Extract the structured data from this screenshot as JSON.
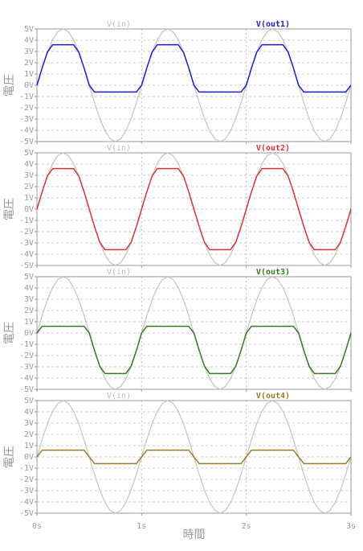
{
  "chart_data": [
    {
      "type": "line",
      "ylabel": "電圧",
      "x": [
        0,
        0.05,
        0.1,
        0.15,
        0.2,
        0.25,
        0.3,
        0.35,
        0.4,
        0.45,
        0.5,
        0.55,
        0.6,
        0.65,
        0.7,
        0.75,
        0.8,
        0.85,
        0.9,
        0.95,
        1,
        1.05,
        1.1,
        1.15,
        1.2,
        1.25,
        1.3,
        1.35,
        1.4,
        1.45,
        1.5,
        1.55,
        1.6,
        1.65,
        1.7,
        1.75,
        1.8,
        1.85,
        1.9,
        1.95,
        2,
        2.05,
        2.1,
        2.15,
        2.2,
        2.25,
        2.3,
        2.35,
        2.4,
        2.45,
        2.5,
        2.55,
        2.6,
        2.65,
        2.7,
        2.75,
        2.8,
        2.85,
        2.9,
        2.95,
        3
      ],
      "ylim": [
        -5,
        5
      ],
      "yticks": [
        {
          "value": 5,
          "label": "5V"
        },
        {
          "value": 4,
          "label": "4V"
        },
        {
          "value": 3,
          "label": "3V"
        },
        {
          "value": 2,
          "label": "2V"
        },
        {
          "value": 1,
          "label": "1V"
        },
        {
          "value": 0,
          "label": "0V"
        },
        {
          "value": -1,
          "label": "-1V"
        },
        {
          "value": -2,
          "label": "-2V"
        },
        {
          "value": -3,
          "label": "-3V"
        },
        {
          "value": -4,
          "label": "-4V"
        },
        {
          "value": -5,
          "label": "-5V"
        }
      ],
      "grid": true,
      "series": [
        {
          "name": "V(in)",
          "color": "#c4c4c4",
          "values": [
            0,
            1.55,
            2.94,
            4.05,
            4.76,
            5,
            4.76,
            4.05,
            2.94,
            1.55,
            0,
            -1.55,
            -2.94,
            -4.05,
            -4.76,
            -5,
            -4.76,
            -4.05,
            -2.94,
            -1.55,
            0,
            1.55,
            2.94,
            4.05,
            4.76,
            5,
            4.76,
            4.05,
            2.94,
            1.55,
            0,
            -1.55,
            -2.94,
            -4.05,
            -4.76,
            -5,
            -4.76,
            -4.05,
            -2.94,
            -1.55,
            0,
            1.55,
            2.94,
            4.05,
            4.76,
            5,
            4.76,
            4.05,
            2.94,
            1.55,
            0,
            -1.55,
            -2.94,
            -4.05,
            -4.76,
            -5,
            -4.76,
            -4.05,
            -2.94,
            -1.55,
            0
          ]
        },
        {
          "name": "V(out1)",
          "color": "#1a1adb",
          "values": [
            0,
            1.55,
            2.94,
            3.6,
            3.6,
            3.6,
            3.6,
            3.6,
            2.94,
            1.55,
            0,
            -0.6,
            -0.6,
            -0.6,
            -0.6,
            -0.6,
            -0.6,
            -0.6,
            -0.6,
            -0.6,
            0,
            1.55,
            2.94,
            3.6,
            3.6,
            3.6,
            3.6,
            3.6,
            2.94,
            1.55,
            0,
            -0.6,
            -0.6,
            -0.6,
            -0.6,
            -0.6,
            -0.6,
            -0.6,
            -0.6,
            -0.6,
            0,
            1.55,
            2.94,
            3.6,
            3.6,
            3.6,
            3.6,
            3.6,
            2.94,
            1.55,
            0,
            -0.6,
            -0.6,
            -0.6,
            -0.6,
            -0.6,
            -0.6,
            -0.6,
            -0.6,
            -0.6,
            0
          ]
        }
      ]
    },
    {
      "type": "line",
      "ylabel": "電圧",
      "x": [
        0,
        0.05,
        0.1,
        0.15,
        0.2,
        0.25,
        0.3,
        0.35,
        0.4,
        0.45,
        0.5,
        0.55,
        0.6,
        0.65,
        0.7,
        0.75,
        0.8,
        0.85,
        0.9,
        0.95,
        1,
        1.05,
        1.1,
        1.15,
        1.2,
        1.25,
        1.3,
        1.35,
        1.4,
        1.45,
        1.5,
        1.55,
        1.6,
        1.65,
        1.7,
        1.75,
        1.8,
        1.85,
        1.9,
        1.95,
        2,
        2.05,
        2.1,
        2.15,
        2.2,
        2.25,
        2.3,
        2.35,
        2.4,
        2.45,
        2.5,
        2.55,
        2.6,
        2.65,
        2.7,
        2.75,
        2.8,
        2.85,
        2.9,
        2.95,
        3
      ],
      "ylim": [
        -5,
        5
      ],
      "yticks": [
        {
          "value": 5,
          "label": "5V"
        },
        {
          "value": 4,
          "label": "4V"
        },
        {
          "value": 3,
          "label": "3V"
        },
        {
          "value": 2,
          "label": "2V"
        },
        {
          "value": 1,
          "label": "1V"
        },
        {
          "value": 0,
          "label": "0V"
        },
        {
          "value": -1,
          "label": "-1V"
        },
        {
          "value": -2,
          "label": "-2V"
        },
        {
          "value": -3,
          "label": "-3V"
        },
        {
          "value": -4,
          "label": "-4V"
        },
        {
          "value": -5,
          "label": "-5V"
        }
      ],
      "grid": true,
      "series": [
        {
          "name": "V(in)",
          "color": "#c4c4c4",
          "values": [
            0,
            1.55,
            2.94,
            4.05,
            4.76,
            5,
            4.76,
            4.05,
            2.94,
            1.55,
            0,
            -1.55,
            -2.94,
            -4.05,
            -4.76,
            -5,
            -4.76,
            -4.05,
            -2.94,
            -1.55,
            0,
            1.55,
            2.94,
            4.05,
            4.76,
            5,
            4.76,
            4.05,
            2.94,
            1.55,
            0,
            -1.55,
            -2.94,
            -4.05,
            -4.76,
            -5,
            -4.76,
            -4.05,
            -2.94,
            -1.55,
            0,
            1.55,
            2.94,
            4.05,
            4.76,
            5,
            4.76,
            4.05,
            2.94,
            1.55,
            0,
            -1.55,
            -2.94,
            -4.05,
            -4.76,
            -5,
            -4.76,
            -4.05,
            -2.94,
            -1.55,
            0
          ]
        },
        {
          "name": "V(out2)",
          "color": "#e03030",
          "values": [
            0,
            1.55,
            2.94,
            3.6,
            3.6,
            3.6,
            3.6,
            3.6,
            2.94,
            1.55,
            0,
            -1.55,
            -2.94,
            -3.6,
            -3.6,
            -3.6,
            -3.6,
            -3.6,
            -2.94,
            -1.55,
            0,
            1.55,
            2.94,
            3.6,
            3.6,
            3.6,
            3.6,
            3.6,
            2.94,
            1.55,
            0,
            -1.55,
            -2.94,
            -3.6,
            -3.6,
            -3.6,
            -3.6,
            -3.6,
            -2.94,
            -1.55,
            0,
            1.55,
            2.94,
            3.6,
            3.6,
            3.6,
            3.6,
            3.6,
            2.94,
            1.55,
            0,
            -1.55,
            -2.94,
            -3.6,
            -3.6,
            -3.6,
            -3.6,
            -3.6,
            -2.94,
            -1.55,
            0
          ]
        }
      ]
    },
    {
      "type": "line",
      "ylabel": "電圧",
      "x": [
        0,
        0.05,
        0.1,
        0.15,
        0.2,
        0.25,
        0.3,
        0.35,
        0.4,
        0.45,
        0.5,
        0.55,
        0.6,
        0.65,
        0.7,
        0.75,
        0.8,
        0.85,
        0.9,
        0.95,
        1,
        1.05,
        1.1,
        1.15,
        1.2,
        1.25,
        1.3,
        1.35,
        1.4,
        1.45,
        1.5,
        1.55,
        1.6,
        1.65,
        1.7,
        1.75,
        1.8,
        1.85,
        1.9,
        1.95,
        2,
        2.05,
        2.1,
        2.15,
        2.2,
        2.25,
        2.3,
        2.35,
        2.4,
        2.45,
        2.5,
        2.55,
        2.6,
        2.65,
        2.7,
        2.75,
        2.8,
        2.85,
        2.9,
        2.95,
        3
      ],
      "ylim": [
        -5,
        5
      ],
      "yticks": [
        {
          "value": 5,
          "label": "5V"
        },
        {
          "value": 4,
          "label": "4V"
        },
        {
          "value": 3,
          "label": "3V"
        },
        {
          "value": 2,
          "label": "2V"
        },
        {
          "value": 1,
          "label": "1V"
        },
        {
          "value": 0,
          "label": "0V"
        },
        {
          "value": -1,
          "label": "-1V"
        },
        {
          "value": -2,
          "label": "-2V"
        },
        {
          "value": -3,
          "label": "-3V"
        },
        {
          "value": -4,
          "label": "-4V"
        },
        {
          "value": -5,
          "label": "-5V"
        }
      ],
      "grid": true,
      "series": [
        {
          "name": "V(in)",
          "color": "#c4c4c4",
          "values": [
            0,
            1.55,
            2.94,
            4.05,
            4.76,
            5,
            4.76,
            4.05,
            2.94,
            1.55,
            0,
            -1.55,
            -2.94,
            -4.05,
            -4.76,
            -5,
            -4.76,
            -4.05,
            -2.94,
            -1.55,
            0,
            1.55,
            2.94,
            4.05,
            4.76,
            5,
            4.76,
            4.05,
            2.94,
            1.55,
            0,
            -1.55,
            -2.94,
            -4.05,
            -4.76,
            -5,
            -4.76,
            -4.05,
            -2.94,
            -1.55,
            0,
            1.55,
            2.94,
            4.05,
            4.76,
            5,
            4.76,
            4.05,
            2.94,
            1.55,
            0,
            -1.55,
            -2.94,
            -4.05,
            -4.76,
            -5,
            -4.76,
            -4.05,
            -2.94,
            -1.55,
            0
          ]
        },
        {
          "name": "V(out3)",
          "color": "#2e7d1a",
          "values": [
            0,
            0.6,
            0.6,
            0.6,
            0.6,
            0.6,
            0.6,
            0.6,
            0.6,
            0.6,
            0,
            -1.55,
            -2.94,
            -3.6,
            -3.6,
            -3.6,
            -3.6,
            -3.6,
            -2.94,
            -1.55,
            0,
            0.6,
            0.6,
            0.6,
            0.6,
            0.6,
            0.6,
            0.6,
            0.6,
            0.6,
            0,
            -1.55,
            -2.94,
            -3.6,
            -3.6,
            -3.6,
            -3.6,
            -3.6,
            -2.94,
            -1.55,
            0,
            0.6,
            0.6,
            0.6,
            0.6,
            0.6,
            0.6,
            0.6,
            0.6,
            0.6,
            0,
            -1.55,
            -2.94,
            -3.6,
            -3.6,
            -3.6,
            -3.6,
            -3.6,
            -2.94,
            -1.55,
            0
          ]
        }
      ]
    },
    {
      "type": "line",
      "ylabel": "電圧",
      "xlabel": "時間",
      "x": [
        0,
        0.05,
        0.1,
        0.15,
        0.2,
        0.25,
        0.3,
        0.35,
        0.4,
        0.45,
        0.5,
        0.55,
        0.6,
        0.65,
        0.7,
        0.75,
        0.8,
        0.85,
        0.9,
        0.95,
        1,
        1.05,
        1.1,
        1.15,
        1.2,
        1.25,
        1.3,
        1.35,
        1.4,
        1.45,
        1.5,
        1.55,
        1.6,
        1.65,
        1.7,
        1.75,
        1.8,
        1.85,
        1.9,
        1.95,
        2,
        2.05,
        2.1,
        2.15,
        2.2,
        2.25,
        2.3,
        2.35,
        2.4,
        2.45,
        2.5,
        2.55,
        2.6,
        2.65,
        2.7,
        2.75,
        2.8,
        2.85,
        2.9,
        2.95,
        3
      ],
      "xlim": [
        0,
        3
      ],
      "xticks": [
        {
          "value": 0,
          "label": "0s"
        },
        {
          "value": 1,
          "label": "1s"
        },
        {
          "value": 2,
          "label": "2s"
        },
        {
          "value": 3,
          "label": "3s"
        }
      ],
      "ylim": [
        -5,
        5
      ],
      "yticks": [
        {
          "value": 5,
          "label": "5V"
        },
        {
          "value": 4,
          "label": "4V"
        },
        {
          "value": 3,
          "label": "3V"
        },
        {
          "value": 2,
          "label": "2V"
        },
        {
          "value": 1,
          "label": "1V"
        },
        {
          "value": 0,
          "label": "0V"
        },
        {
          "value": -1,
          "label": "-1V"
        },
        {
          "value": -2,
          "label": "-2V"
        },
        {
          "value": -3,
          "label": "-3V"
        },
        {
          "value": -4,
          "label": "-4V"
        },
        {
          "value": -5,
          "label": "-5V"
        }
      ],
      "grid": true,
      "series": [
        {
          "name": "V(in)",
          "color": "#c4c4c4",
          "values": [
            0,
            1.55,
            2.94,
            4.05,
            4.76,
            5,
            4.76,
            4.05,
            2.94,
            1.55,
            0,
            -1.55,
            -2.94,
            -4.05,
            -4.76,
            -5,
            -4.76,
            -4.05,
            -2.94,
            -1.55,
            0,
            1.55,
            2.94,
            4.05,
            4.76,
            5,
            4.76,
            4.05,
            2.94,
            1.55,
            0,
            -1.55,
            -2.94,
            -4.05,
            -4.76,
            -5,
            -4.76,
            -4.05,
            -2.94,
            -1.55,
            0,
            1.55,
            2.94,
            4.05,
            4.76,
            5,
            4.76,
            4.05,
            2.94,
            1.55,
            0,
            -1.55,
            -2.94,
            -4.05,
            -4.76,
            -5,
            -4.76,
            -4.05,
            -2.94,
            -1.55,
            0
          ]
        },
        {
          "name": "V(out4)",
          "color": "#a07a20",
          "values": [
            0,
            0.6,
            0.6,
            0.6,
            0.6,
            0.6,
            0.6,
            0.6,
            0.6,
            0.6,
            0,
            -0.6,
            -0.6,
            -0.6,
            -0.6,
            -0.6,
            -0.6,
            -0.6,
            -0.6,
            -0.6,
            0,
            0.6,
            0.6,
            0.6,
            0.6,
            0.6,
            0.6,
            0.6,
            0.6,
            0.6,
            0,
            -0.6,
            -0.6,
            -0.6,
            -0.6,
            -0.6,
            -0.6,
            -0.6,
            -0.6,
            -0.6,
            0,
            0.6,
            0.6,
            0.6,
            0.6,
            0.6,
            0.6,
            0.6,
            0.6,
            0.6,
            0,
            -0.6,
            -0.6,
            -0.6,
            -0.6,
            -0.6,
            -0.6,
            -0.6,
            -0.6,
            -0.6,
            0
          ]
        }
      ]
    }
  ]
}
